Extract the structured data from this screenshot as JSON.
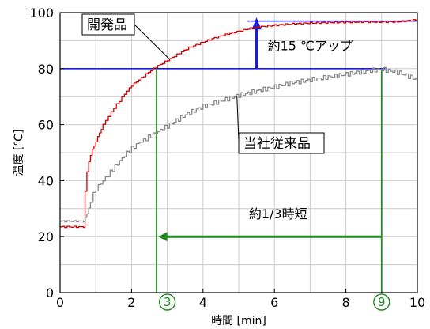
{
  "chart_data": {
    "type": "line",
    "xlabel": "時間 [min]",
    "ylabel": "温度 [℃]",
    "xlim": [
      0,
      10
    ],
    "ylim": [
      0,
      100
    ],
    "xticks": [
      "0",
      "2",
      "4",
      "6",
      "8",
      "10"
    ],
    "yticks": [
      "0",
      "20",
      "40",
      "60",
      "80",
      "100"
    ],
    "grid": true,
    "series": [
      {
        "name": "開発品",
        "color": "#d40000",
        "x": [
          0,
          0.65,
          0.7,
          0.75,
          0.8,
          0.9,
          1.0,
          1.1,
          1.2,
          1.35,
          1.5,
          1.65,
          1.8,
          2.0,
          2.2,
          2.4,
          2.6,
          2.8,
          3.0,
          3.2,
          3.4,
          3.6,
          3.8,
          4.0,
          4.25,
          4.5,
          4.75,
          5.0,
          5.25,
          5.5,
          6.0,
          6.5,
          7.0,
          7.5,
          8.0,
          8.5,
          9.0,
          9.5,
          10.0
        ],
        "y": [
          23.5,
          23.5,
          36,
          43,
          47,
          51,
          54,
          57,
          60,
          63,
          66,
          68.5,
          71,
          74,
          76,
          78,
          80,
          81.5,
          83,
          84.5,
          86,
          87.5,
          88.5,
          89.5,
          90.7,
          91.7,
          92.6,
          93.4,
          94.2,
          94.8,
          95.5,
          96,
          96.3,
          96.5,
          96.6,
          96.7,
          96.7,
          96.8,
          97.5
        ]
      },
      {
        "name": "当社従来品",
        "color": "#888888",
        "x": [
          0,
          0.65,
          0.75,
          0.85,
          1.0,
          1.2,
          1.4,
          1.6,
          1.8,
          2.0,
          2.2,
          2.4,
          2.6,
          2.8,
          3.0,
          3.25,
          3.5,
          3.75,
          4.0,
          4.25,
          4.5,
          4.75,
          5.0,
          5.5,
          6.0,
          6.5,
          7.0,
          7.5,
          8.0,
          8.5,
          9.0,
          9.5,
          10.0
        ],
        "y": [
          25.5,
          25.5,
          28,
          33,
          37,
          40,
          43,
          46,
          49,
          51.5,
          53.5,
          55,
          56.5,
          58,
          59.5,
          61.5,
          63.5,
          65,
          66.5,
          67.5,
          68.5,
          69.5,
          70.5,
          72,
          73.5,
          75,
          76,
          77,
          78,
          79,
          79.8,
          78.5,
          76
        ]
      }
    ],
    "reference_lines": {
      "blue_h_80": 80,
      "blue_h_97": 97,
      "green_v_left": 2.7,
      "green_v_right": 9.0
    },
    "annotations": {
      "dev_label": "開発品",
      "old_label": "当社従来品",
      "gain_text": "約15 ℃アップ",
      "time_text": "約1/3時短",
      "marker_left": "3",
      "marker_right": "9"
    },
    "colors": {
      "blue": "#1a1adc",
      "green": "#1e8c1e",
      "grid": "#cccccc"
    }
  }
}
